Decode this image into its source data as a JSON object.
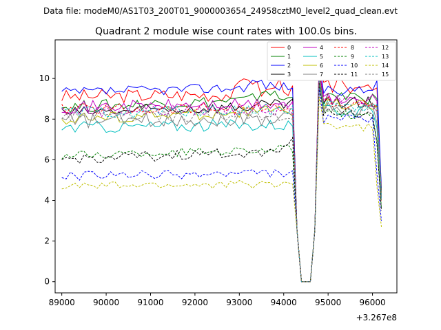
{
  "figure": {
    "suptitle": "Data file: modeM0/AS1T03_200T01_9000003654_24958cztM0_level2_quad_clean.evt"
  },
  "chart_data": {
    "type": "line",
    "title": "Quadrant 2 module wise count rates with 100.0s bins.",
    "xlabel": "",
    "ylabel": "",
    "offset_label": "+3.267e8",
    "x_offset": 326700000,
    "xlim": [
      88850,
      96550
    ],
    "ylim": [
      -0.55,
      11.9
    ],
    "xticks": [
      89000,
      90000,
      91000,
      92000,
      93000,
      94000,
      95000,
      96000
    ],
    "xtick_labels": [
      "89000",
      "90000",
      "91000",
      "92000",
      "93000",
      "94000",
      "95000",
      "96000"
    ],
    "yticks": [
      0,
      2,
      4,
      6,
      8,
      10
    ],
    "ytick_labels": [
      "0",
      "2",
      "4",
      "6",
      "8",
      "10"
    ],
    "x_range": [
      89000,
      96200
    ],
    "x_step": 100,
    "gap": {
      "from": 94300,
      "to": 94700
    },
    "grid": false,
    "legend_position": "top-right",
    "series": [
      {
        "name": "0",
        "color": "#ff0000",
        "style": "solid",
        "base": 9.1,
        "slope": 0.25,
        "amp": 0.35,
        "end": 4.2,
        "post": 9.6,
        "peaks": [
          [
            93200,
            0.9
          ],
          [
            93900,
            0.5
          ]
        ]
      },
      {
        "name": "1",
        "color": "#008000",
        "style": "solid",
        "base": 8.6,
        "slope": 0.55,
        "amp": 0.3,
        "end": 4.5,
        "post": 9.0,
        "peaks": [
          [
            93600,
            0.5
          ]
        ]
      },
      {
        "name": "2",
        "color": "#0000ff",
        "style": "solid",
        "base": 9.3,
        "slope": 0.45,
        "amp": 0.25,
        "end": 4.6,
        "post": 9.4,
        "peaks": [
          [
            93400,
            0.3
          ]
        ]
      },
      {
        "name": "3",
        "color": "#000000",
        "style": "solid",
        "base": 8.3,
        "slope": 0.55,
        "amp": 0.3,
        "end": 4.4,
        "post": 8.8,
        "peaks": []
      },
      {
        "name": "4",
        "color": "#bf00bf",
        "style": "solid",
        "base": 8.6,
        "slope": 0.2,
        "amp": 0.3,
        "end": 4.3,
        "post": 9.0,
        "peaks": [
          [
            94600,
            0.8
          ]
        ]
      },
      {
        "name": "5",
        "color": "#00bfbf",
        "style": "solid",
        "base": 7.6,
        "slope": 0.2,
        "amp": 0.3,
        "end": 4.2,
        "post": 8.4,
        "peaks": []
      },
      {
        "name": "6",
        "color": "#bfbf00",
        "style": "solid",
        "base": 8.0,
        "slope": 0.6,
        "amp": 0.3,
        "end": 4.3,
        "post": 8.7,
        "peaks": []
      },
      {
        "name": "7",
        "color": "#808080",
        "style": "solid",
        "base": 7.9,
        "slope": 0.2,
        "amp": 0.35,
        "end": 4.2,
        "post": 8.5,
        "peaks": []
      },
      {
        "name": "8",
        "color": "#ff0000",
        "style": "dashed",
        "base": 8.5,
        "slope": 0.1,
        "amp": 0.3,
        "end": 4.0,
        "post": 8.8,
        "peaks": []
      },
      {
        "name": "9",
        "color": "#008000",
        "style": "dashed",
        "base": 6.2,
        "slope": 0.5,
        "amp": 0.22,
        "end": 3.6,
        "post": 8.2,
        "peaks": []
      },
      {
        "name": "10",
        "color": "#0000ff",
        "style": "dashed",
        "base": 5.2,
        "slope": 0.2,
        "amp": 0.22,
        "end": 3.0,
        "post": 8.0,
        "peaks": []
      },
      {
        "name": "11",
        "color": "#000000",
        "style": "dashed",
        "base": 6.0,
        "slope": 0.6,
        "amp": 0.25,
        "end": 3.5,
        "post": 8.3,
        "peaks": [
          [
            94200,
            0.7
          ]
        ]
      },
      {
        "name": "12",
        "color": "#bf00bf",
        "style": "dashed",
        "base": 8.4,
        "slope": 0.1,
        "amp": 0.3,
        "end": 4.1,
        "post": 8.9,
        "peaks": []
      },
      {
        "name": "13",
        "color": "#00bfbf",
        "style": "dashed",
        "base": 8.3,
        "slope": 0.25,
        "amp": 0.3,
        "end": 4.1,
        "post": 8.6,
        "peaks": []
      },
      {
        "name": "14",
        "color": "#bfbf00",
        "style": "dashed",
        "base": 4.7,
        "slope": 0.15,
        "amp": 0.2,
        "end": 2.7,
        "post": 7.6,
        "peaks": []
      },
      {
        "name": "15",
        "color": "#808080",
        "style": "dashed",
        "base": 8.1,
        "slope": 0.15,
        "amp": 0.3,
        "end": 4.0,
        "post": 8.5,
        "peaks": []
      }
    ]
  }
}
